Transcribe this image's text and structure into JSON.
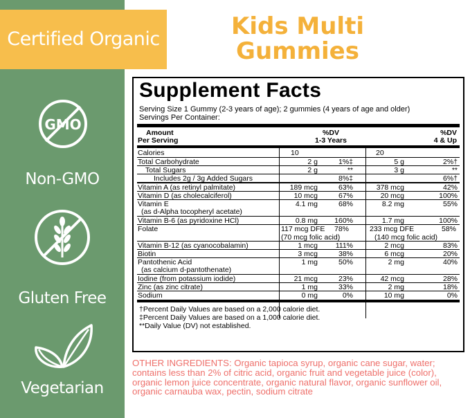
{
  "badges": {
    "certified": "Certified Organic",
    "gmo_icon_text": "GMO",
    "non_gmo": "Non-GMO",
    "gluten_free": "Gluten Free",
    "vegetarian": "Vegetarian"
  },
  "product": {
    "title_line1": "Kids Multi",
    "title_line2": "Gummies"
  },
  "facts": {
    "title": "Supplement Facts",
    "serving_size": "Serving Size 1 Gummy (2-3 years of age); 2 gummies (4 years of age and older)",
    "servings_per_container": "Servings Per Container:",
    "header": {
      "amount": "Amount",
      "per_serving": "Per Serving",
      "dv1_top": "%DV",
      "dv1_bottom": "1-3 Years",
      "dv2_top": "%DV",
      "dv2_bottom": "4 & Up"
    },
    "rows": [
      {
        "name": "Calories",
        "a1": "10",
        "d1": "",
        "a2": "20",
        "d2": ""
      },
      {
        "name": "Total Carbohydrate",
        "a1": "2 g",
        "d1": "1%‡",
        "a2": "5 g",
        "d2": "2%†"
      },
      {
        "name": "Total Sugars",
        "a1": "2 g",
        "d1": "**",
        "a2": "3 g",
        "d2": "**"
      },
      {
        "name": "Includes 2g / 3g Added Sugars",
        "a1": "",
        "d1": "8%‡",
        "a2": "",
        "d2": "6%†"
      },
      {
        "name": "Vitamin A (as retinyl palmitate)",
        "a1": "189 mcg",
        "d1": "63%",
        "a2": "378 mcg",
        "d2": "42%"
      },
      {
        "name": "Vitamin D (as cholecalciferol)",
        "a1": "10 mcg",
        "d1": "67%",
        "a2": "20 mcg",
        "d2": "100%"
      },
      {
        "name": "Vitamin E",
        "name2": "(as d-Alpha tocopheryl acetate)",
        "a1": "4.1 mg",
        "d1": "68%",
        "a2": "8.2 mg",
        "d2": "55%"
      },
      {
        "name": "Vitamin B-6 (as pyridoxine HCl)",
        "a1": "0.8 mg",
        "d1": "160%",
        "a2": "1.7 mg",
        "d2": "100%"
      },
      {
        "name": "Folate",
        "a1": "117 mcg DFE",
        "a1b": "(70 mcg folic acid)",
        "d1": "78%",
        "a2": "233 mcg DFE",
        "a2b": "(140 mcg folic acid)",
        "d2": "58%"
      },
      {
        "name": "Vitamin B-12 (as cyanocobalamin)",
        "a1": "1 mcg",
        "d1": "111%",
        "a2": "2 mcg",
        "d2": "83%"
      },
      {
        "name": "Biotin",
        "a1": "3 mcg",
        "d1": "38%",
        "a2": "6 mcg",
        "d2": "20%"
      },
      {
        "name": "Pantothenic Acid",
        "name2": "(as calcium d-pantothenate)",
        "a1": "1 mg",
        "d1": "50%",
        "a2": "2 mg",
        "d2": "40%"
      },
      {
        "name": "Iodine (from potassium iodide)",
        "a1": "21 mcg",
        "d1": "23%",
        "a2": "42 mcg",
        "d2": "28%"
      },
      {
        "name": "Zinc (as zinc citrate)",
        "a1": "1 mg",
        "d1": "33%",
        "a2": "2 mg",
        "d2": "18%"
      },
      {
        "name": "Sodium",
        "a1": "0 mg",
        "d1": "0%",
        "a2": "10 mg",
        "d2": "0%"
      }
    ],
    "footnotes": [
      "†Percent Daily Values are based on a 2,000 calorie diet.",
      "‡Percent Daily Values are based on a 1,000 calorie diet.",
      "**Daily Value (DV) not established."
    ]
  },
  "ingredients": {
    "text": "OTHER INGREDIENTS: Organic tapioca syrup, organic cane sugar, water; contains less than 2% of citric acid, organic fruit and vegetable juice (color), organic lemon juice concentrate, organic natural flavor, organic sunflower oil, organic carnauba wax, pectin, sodium citrate"
  },
  "colors": {
    "sidebar_green": "#6b9a6e",
    "banner_yellow": "#f7be4c",
    "title_orange": "#f4b13a",
    "ingredients_red": "#ee6f6a"
  }
}
